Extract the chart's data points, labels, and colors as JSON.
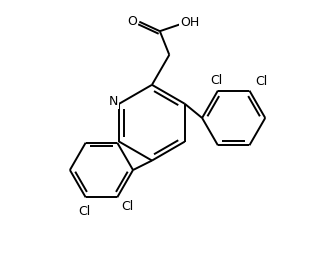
{
  "line_color": "#000000",
  "bg_color": "#ffffff",
  "line_width": 1.4,
  "font_size": 8.5,
  "fig_width": 3.26,
  "fig_height": 2.58,
  "dpi": 100,
  "xlim": [
    0,
    10
  ],
  "ylim": [
    0,
    8
  ]
}
